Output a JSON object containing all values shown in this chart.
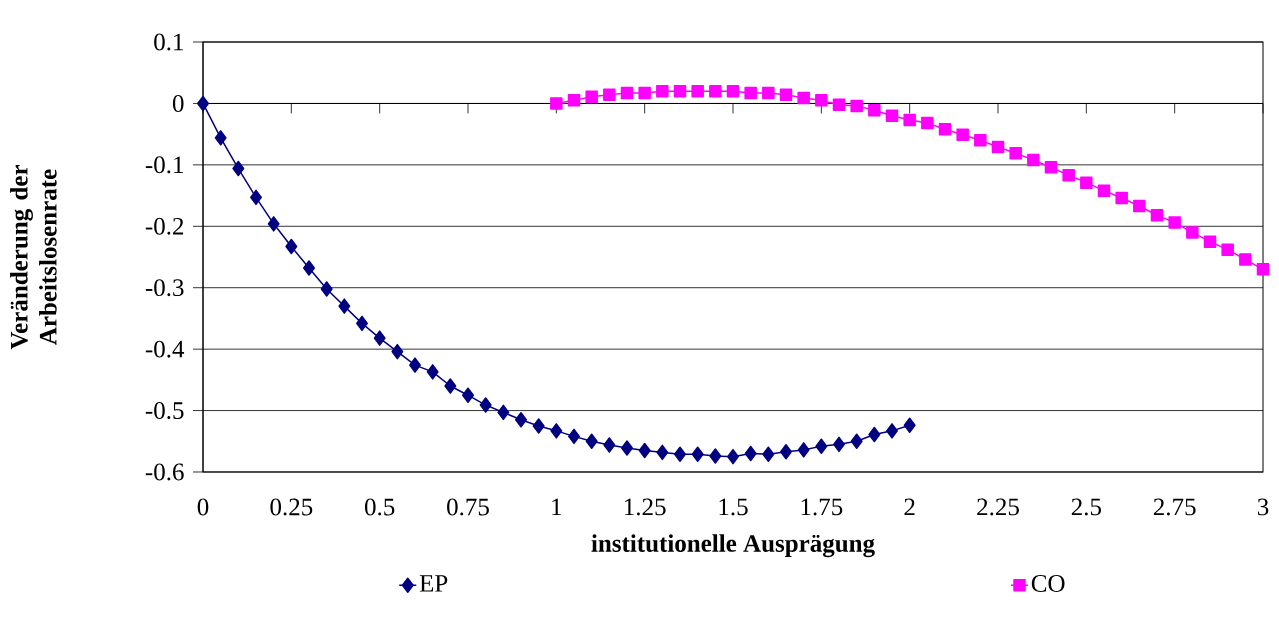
{
  "chart_data": {
    "type": "line",
    "xlabel": "institutionelle Ausprägung",
    "ylabel": "Veränderung der Arbeitslosenrate",
    "xlim": [
      0,
      3
    ],
    "xticks": [
      0,
      0.25,
      0.5,
      0.75,
      1,
      1.25,
      1.5,
      1.75,
      2,
      2.25,
      2.5,
      2.75,
      3
    ],
    "ylim": [
      -0.6,
      0.1
    ],
    "yticks": [
      -0.6,
      -0.5,
      -0.4,
      -0.3,
      -0.2,
      -0.1,
      0,
      0.1
    ],
    "grid": "y",
    "legend": "bottom",
    "line_style": "solid",
    "series": [
      {
        "name": "EP",
        "color": "#000080",
        "marker": "diamond",
        "x": [
          0,
          0.05,
          0.1,
          0.15,
          0.2,
          0.25,
          0.3,
          0.35,
          0.4,
          0.45,
          0.5,
          0.55,
          0.6,
          0.65,
          0.7,
          0.75,
          0.8,
          0.85,
          0.9,
          0.95,
          1,
          1.05,
          1.1,
          1.15,
          1.2,
          1.25,
          1.3,
          1.35,
          1.4,
          1.45,
          1.5,
          1.55,
          1.6,
          1.65,
          1.7,
          1.75,
          1.8,
          1.85,
          1.9,
          1.95,
          2
        ],
        "values": [
          0,
          -0.056,
          -0.106,
          -0.153,
          -0.196,
          -0.233,
          -0.268,
          -0.302,
          -0.33,
          -0.358,
          -0.382,
          -0.404,
          -0.426,
          -0.437,
          -0.46,
          -0.475,
          -0.491,
          -0.503,
          -0.515,
          -0.525,
          -0.533,
          -0.542,
          -0.55,
          -0.556,
          -0.561,
          -0.565,
          -0.568,
          -0.571,
          -0.571,
          -0.574,
          -0.575,
          -0.57,
          -0.571,
          -0.567,
          -0.564,
          -0.558,
          -0.555,
          -0.55,
          -0.539,
          -0.533,
          -0.524
        ]
      },
      {
        "name": "CO",
        "color": "#ff00ff",
        "marker": "square",
        "x": [
          1,
          1.05,
          1.1,
          1.15,
          1.2,
          1.25,
          1.3,
          1.35,
          1.4,
          1.45,
          1.5,
          1.55,
          1.6,
          1.65,
          1.7,
          1.75,
          1.8,
          1.85,
          1.9,
          1.95,
          2,
          2.05,
          2.1,
          2.15,
          2.2,
          2.25,
          2.3,
          2.35,
          2.4,
          2.45,
          2.5,
          2.55,
          2.6,
          2.65,
          2.7,
          2.75,
          2.8,
          2.85,
          2.9,
          2.95,
          3
        ],
        "values": [
          0,
          0.005,
          0.011,
          0.014,
          0.017,
          0.017,
          0.02,
          0.02,
          0.02,
          0.02,
          0.02,
          0.017,
          0.017,
          0.014,
          0.009,
          0.005,
          -0.002,
          -0.004,
          -0.011,
          -0.02,
          -0.027,
          -0.032,
          -0.042,
          -0.051,
          -0.06,
          -0.071,
          -0.081,
          -0.092,
          -0.104,
          -0.117,
          -0.129,
          -0.142,
          -0.154,
          -0.167,
          -0.182,
          -0.194,
          -0.21,
          -0.225,
          -0.238,
          -0.254,
          -0.27
        ]
      }
    ]
  }
}
